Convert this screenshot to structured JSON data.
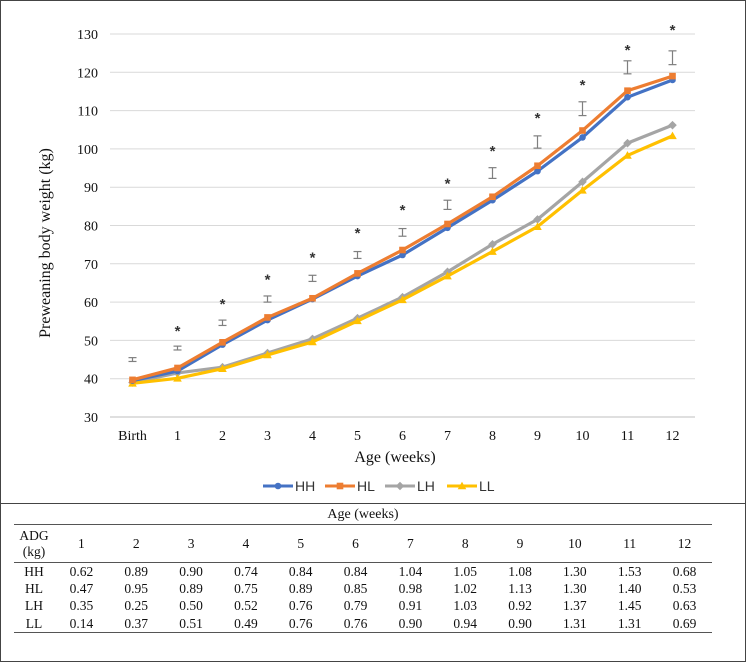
{
  "chart_data": {
    "type": "line",
    "xlabel": "Age (weeks)",
    "ylabel": "Preweaning body weight (kg)",
    "categories": [
      "Birth",
      "1",
      "2",
      "3",
      "4",
      "5",
      "6",
      "7",
      "8",
      "9",
      "10",
      "11",
      "12"
    ],
    "yticks": [
      "30",
      "40",
      "50",
      "60",
      "70",
      "80",
      "90",
      "100",
      "110",
      "120",
      "130"
    ],
    "ylim": [
      30,
      130
    ],
    "grid": true,
    "legend_position": "bottom",
    "series": [
      {
        "name": "HH",
        "color": "#4472C4",
        "marker": "circle",
        "values": [
          39.5,
          42.0,
          48.9,
          55.3,
          60.8,
          66.8,
          72.3,
          79.4,
          86.6,
          94.2,
          103.0,
          113.5,
          118.0
        ]
      },
      {
        "name": "HL",
        "color": "#ED7D31",
        "marker": "square",
        "values": [
          39.7,
          42.8,
          49.5,
          56.0,
          61.0,
          67.5,
          73.6,
          80.4,
          87.5,
          95.6,
          104.8,
          115.2,
          119.0
        ]
      },
      {
        "name": "LH",
        "color": "#A5A5A5",
        "marker": "diamond",
        "values": [
          39.0,
          41.5,
          43.0,
          46.7,
          50.4,
          55.8,
          61.3,
          67.9,
          75.1,
          81.6,
          91.4,
          101.5,
          106.2
        ]
      },
      {
        "name": "LL",
        "color": "#FFC000",
        "marker": "triangle",
        "values": [
          38.8,
          40.1,
          42.6,
          46.2,
          49.6,
          55.1,
          60.6,
          66.8,
          73.2,
          79.7,
          89.2,
          98.3,
          103.4
        ]
      }
    ],
    "error_bars": {
      "center": [
        45.0,
        48.0,
        54.6,
        60.8,
        66.2,
        72.3,
        78.2,
        85.4,
        93.7,
        101.8,
        110.5,
        121.3,
        123.8
      ],
      "half_range": [
        0.5,
        0.5,
        0.7,
        0.8,
        0.8,
        0.9,
        1.0,
        1.2,
        1.4,
        1.6,
        1.8,
        1.7,
        1.8
      ]
    },
    "significance_markers": [
      {
        "category": "1",
        "label": "*",
        "y": 53.8
      },
      {
        "category": "2",
        "label": "*",
        "y": 60.8
      },
      {
        "category": "3",
        "label": "*",
        "y": 67.2
      },
      {
        "category": "4",
        "label": "*",
        "y": 72.9
      },
      {
        "category": "5",
        "label": "*",
        "y": 79.3
      },
      {
        "category": "6",
        "label": "*",
        "y": 85.4
      },
      {
        "category": "7",
        "label": "*",
        "y": 92.3
      },
      {
        "category": "8",
        "label": "*",
        "y": 100.8
      },
      {
        "category": "9",
        "label": "*",
        "y": 109.4
      },
      {
        "category": "10",
        "label": "*",
        "y": 118.0
      },
      {
        "category": "11",
        "label": "*",
        "y": 127.1
      },
      {
        "category": "12",
        "label": "*",
        "y": 132.3
      }
    ]
  },
  "table": {
    "header": "Age (weeks)",
    "row_label_header_line1": "ADG",
    "row_label_header_line2": "(kg)",
    "columns": [
      "1",
      "2",
      "3",
      "4",
      "5",
      "6",
      "7",
      "8",
      "9",
      "10",
      "11",
      "12"
    ],
    "rows": [
      {
        "label": "HH",
        "values": [
          "0.62",
          "0.89",
          "0.90",
          "0.74",
          "0.84",
          "0.84",
          "1.04",
          "1.05",
          "1.08",
          "1.30",
          "1.53",
          "0.68"
        ]
      },
      {
        "label": "HL",
        "values": [
          "0.47",
          "0.95",
          "0.89",
          "0.75",
          "0.89",
          "0.85",
          "0.98",
          "1.02",
          "1.13",
          "1.30",
          "1.40",
          "0.53"
        ]
      },
      {
        "label": "LH",
        "values": [
          "0.35",
          "0.25",
          "0.50",
          "0.52",
          "0.76",
          "0.79",
          "0.91",
          "1.03",
          "0.92",
          "1.37",
          "1.45",
          "0.63"
        ]
      },
      {
        "label": "LL",
        "values": [
          "0.14",
          "0.37",
          "0.51",
          "0.49",
          "0.76",
          "0.76",
          "0.90",
          "0.94",
          "0.90",
          "1.31",
          "1.31",
          "0.69"
        ]
      }
    ]
  }
}
